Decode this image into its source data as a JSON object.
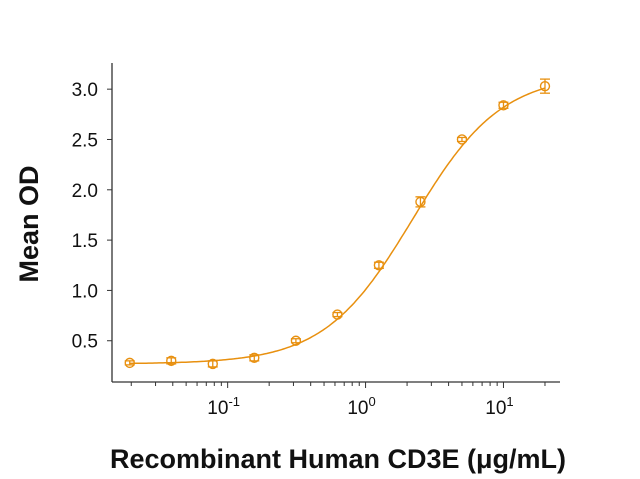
{
  "chart_data": {
    "type": "scatter",
    "xlabel": "Recombinant Human CD3E (μg/mL)",
    "ylabel": "Mean OD",
    "x_scale": "log",
    "xlim": [
      0.0145,
      25.7
    ],
    "ylim": [
      0.09,
      3.26
    ],
    "x_ticks": [
      {
        "value": 0.1,
        "base": "10",
        "exp": "-1"
      },
      {
        "value": 1,
        "base": "10",
        "exp": "0"
      },
      {
        "value": 10,
        "base": "10",
        "exp": "1"
      }
    ],
    "y_ticks": [
      "0.5",
      "1.0",
      "1.5",
      "2.0",
      "2.5",
      "3.0"
    ],
    "grid": false,
    "color": "#E8900F",
    "fit": "4-parameter logistic curve",
    "series": [
      {
        "x": [
          0.0195,
          0.039,
          0.078,
          0.156,
          0.3125,
          0.625,
          1.25,
          2.5,
          5,
          10,
          20
        ],
        "y": [
          0.28,
          0.3,
          0.27,
          0.33,
          0.5,
          0.76,
          1.25,
          1.88,
          2.5,
          2.84,
          3.03
        ],
        "error": [
          0.02,
          0.03,
          0.03,
          0.03,
          0.02,
          0.02,
          0.03,
          0.05,
          0.02,
          0.03,
          0.07
        ]
      }
    ]
  }
}
